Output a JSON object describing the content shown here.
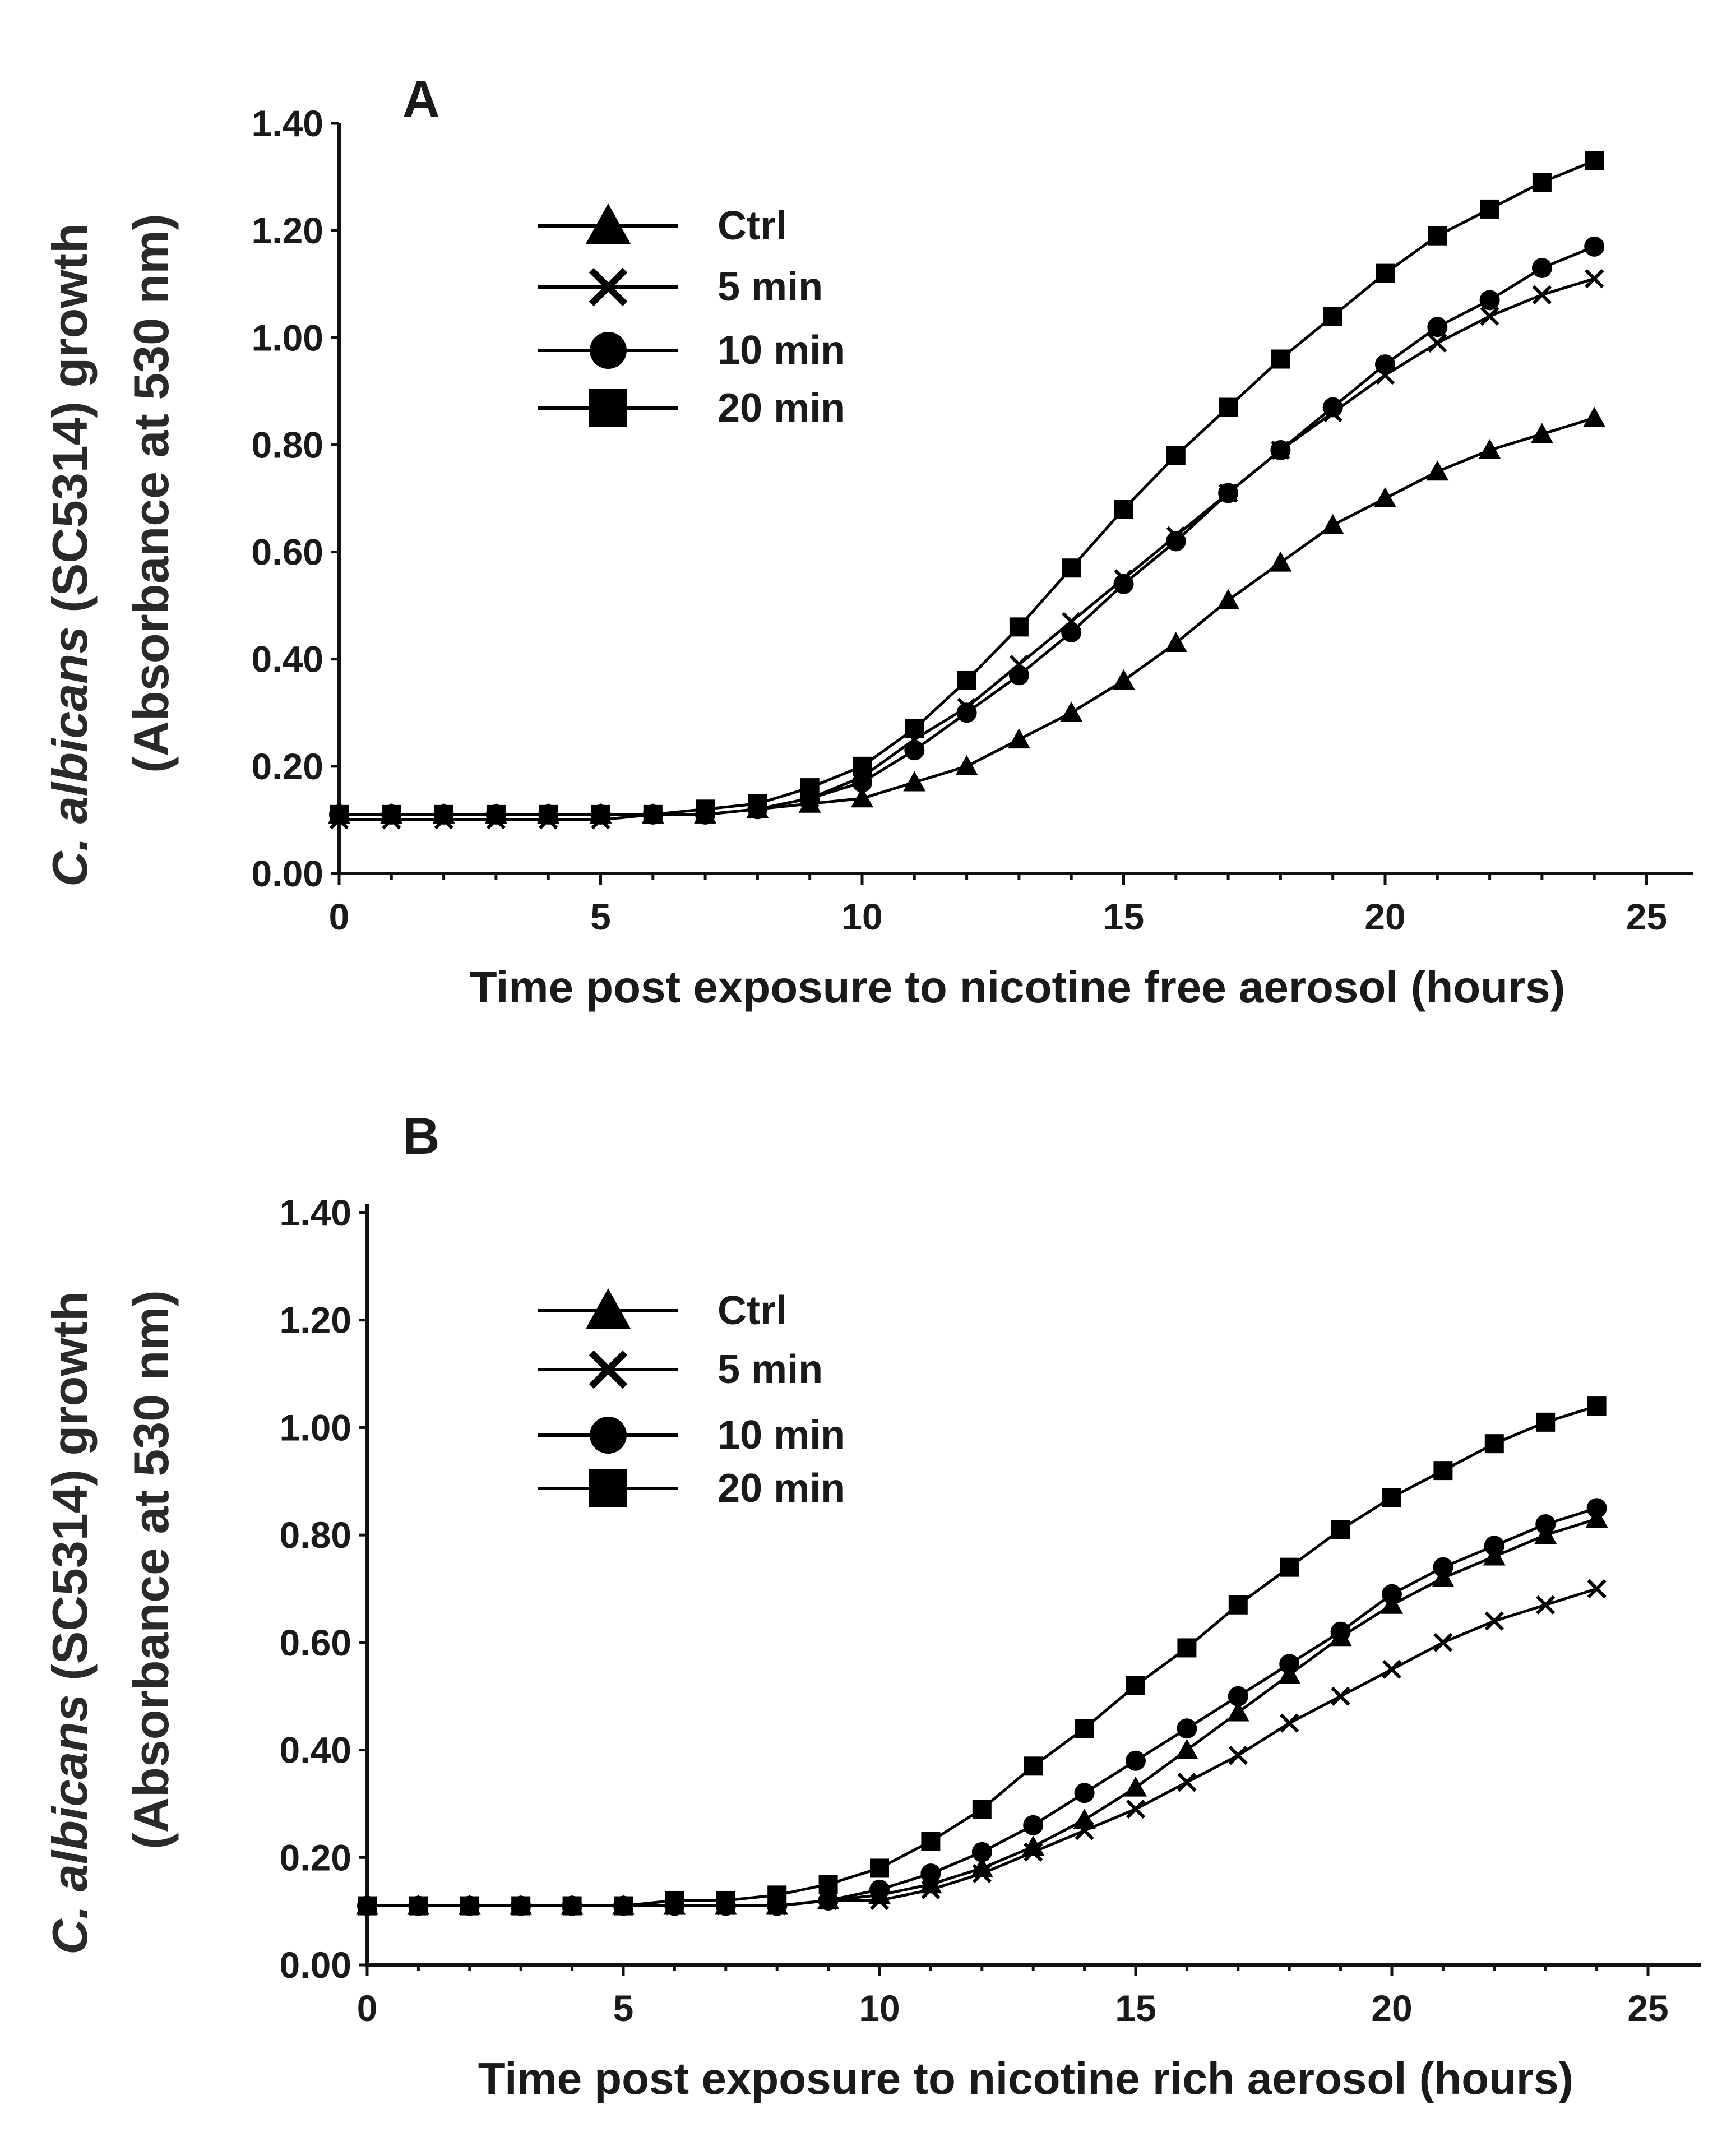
{
  "chart_data": [
    {
      "type": "line",
      "panel": "A",
      "xlabel": "Time post exposure to nicotine free aerosol (hours)",
      "ylabel_italic_prefix": "C. albicans",
      "ylabel_rest": " (SC5314) growth",
      "ylabel_line2": "(Absorbance at  530 nm)",
      "xlim": [
        0,
        26
      ],
      "ylim": [
        0,
        1.4
      ],
      "xticks": [
        "0",
        "5",
        "10",
        "15",
        "20",
        "25"
      ],
      "yticks": [
        "0.00",
        "0.20",
        "0.40",
        "0.60",
        "0.80",
        "1.00",
        "1.20",
        "1.40"
      ],
      "x": [
        0,
        1,
        2,
        3,
        4,
        5,
        6,
        7,
        8,
        9,
        10,
        11,
        12,
        13,
        14,
        15,
        16,
        17,
        18,
        19,
        20,
        21,
        22,
        23,
        24
      ],
      "series": [
        {
          "name": "Ctrl",
          "marker": "triangle",
          "values": [
            0.11,
            0.11,
            0.11,
            0.11,
            0.11,
            0.11,
            0.11,
            0.11,
            0.12,
            0.13,
            0.14,
            0.17,
            0.2,
            0.25,
            0.3,
            0.36,
            0.43,
            0.51,
            0.58,
            0.65,
            0.7,
            0.75,
            0.79,
            0.82,
            0.85
          ]
        },
        {
          "name": "5 min",
          "marker": "x",
          "values": [
            0.1,
            0.1,
            0.1,
            0.1,
            0.1,
            0.1,
            0.11,
            0.11,
            0.12,
            0.14,
            0.18,
            0.25,
            0.31,
            0.39,
            0.47,
            0.55,
            0.63,
            0.71,
            0.79,
            0.86,
            0.93,
            0.99,
            1.04,
            1.08,
            1.11
          ]
        },
        {
          "name": "10 min",
          "marker": "circle",
          "values": [
            0.11,
            0.11,
            0.11,
            0.11,
            0.11,
            0.11,
            0.11,
            0.11,
            0.12,
            0.14,
            0.17,
            0.23,
            0.3,
            0.37,
            0.45,
            0.54,
            0.62,
            0.71,
            0.79,
            0.87,
            0.95,
            1.02,
            1.07,
            1.13,
            1.17
          ]
        },
        {
          "name": "20 min",
          "marker": "square",
          "values": [
            0.11,
            0.11,
            0.11,
            0.11,
            0.11,
            0.11,
            0.11,
            0.12,
            0.13,
            0.16,
            0.2,
            0.27,
            0.36,
            0.46,
            0.57,
            0.68,
            0.78,
            0.87,
            0.96,
            1.04,
            1.12,
            1.19,
            1.24,
            1.29,
            1.33
          ]
        }
      ]
    },
    {
      "type": "line",
      "panel": "B",
      "xlabel": "Time post exposure to nicotine rich aerosol (hours)",
      "ylabel_italic_prefix": "C. albicans",
      "ylabel_rest": " (SC5314) growth",
      "ylabel_line2": "(Absorbance at  530 nm)",
      "xlim": [
        0,
        26
      ],
      "ylim": [
        0,
        1.4
      ],
      "xticks": [
        "0",
        "5",
        "10",
        "15",
        "20",
        "25"
      ],
      "yticks": [
        "0.00",
        "0.20",
        "0.40",
        "0.60",
        "0.80",
        "1.00",
        "1.20",
        "1.40"
      ],
      "x": [
        0,
        1,
        2,
        3,
        4,
        5,
        6,
        7,
        8,
        9,
        10,
        11,
        12,
        13,
        14,
        15,
        16,
        17,
        18,
        19,
        20,
        21,
        22,
        23,
        24
      ],
      "series": [
        {
          "name": "Ctrl",
          "marker": "triangle",
          "values": [
            0.11,
            0.11,
            0.11,
            0.11,
            0.11,
            0.11,
            0.11,
            0.11,
            0.11,
            0.12,
            0.13,
            0.15,
            0.18,
            0.22,
            0.27,
            0.33,
            0.4,
            0.47,
            0.54,
            0.61,
            0.67,
            0.72,
            0.76,
            0.8,
            0.83
          ]
        },
        {
          "name": "5 min",
          "marker": "x",
          "values": [
            0.11,
            0.11,
            0.11,
            0.11,
            0.11,
            0.11,
            0.11,
            0.11,
            0.11,
            0.12,
            0.12,
            0.14,
            0.17,
            0.21,
            0.25,
            0.29,
            0.34,
            0.39,
            0.45,
            0.5,
            0.55,
            0.6,
            0.64,
            0.67,
            0.7
          ]
        },
        {
          "name": "10 min",
          "marker": "circle",
          "values": [
            0.11,
            0.11,
            0.11,
            0.11,
            0.11,
            0.11,
            0.11,
            0.11,
            0.11,
            0.12,
            0.14,
            0.17,
            0.21,
            0.26,
            0.32,
            0.38,
            0.44,
            0.5,
            0.56,
            0.62,
            0.69,
            0.74,
            0.78,
            0.82,
            0.85
          ]
        },
        {
          "name": "20 min",
          "marker": "square",
          "values": [
            0.11,
            0.11,
            0.11,
            0.11,
            0.11,
            0.11,
            0.12,
            0.12,
            0.13,
            0.15,
            0.18,
            0.23,
            0.29,
            0.37,
            0.44,
            0.52,
            0.59,
            0.67,
            0.74,
            0.81,
            0.87,
            0.92,
            0.97,
            1.01,
            1.04
          ]
        }
      ]
    }
  ]
}
